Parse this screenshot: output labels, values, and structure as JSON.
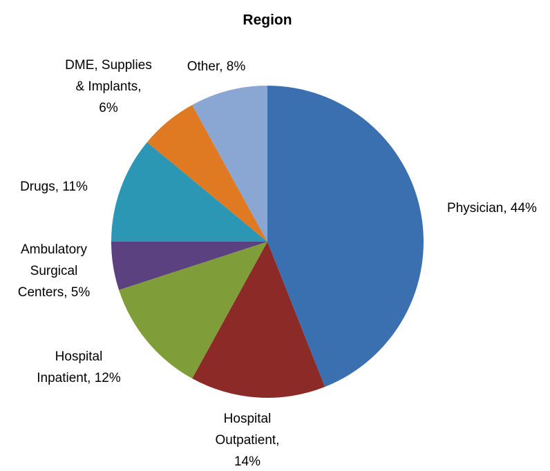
{
  "chart_data": {
    "type": "pie",
    "title": "Region",
    "values": [
      44,
      14,
      12,
      5,
      11,
      6,
      8
    ],
    "value_labels": [
      [
        "Physician, 44%"
      ],
      [
        "Hospital",
        "Outpatient,",
        "14%"
      ],
      [
        "Hospital",
        "Inpatient, 12%"
      ],
      [
        "Ambulatory",
        "Surgical",
        "Centers, 5%"
      ],
      [
        "Drugs, 11%"
      ],
      [
        "DME, Supplies",
        "& Implants,",
        "6%"
      ],
      [
        "Other, 8%"
      ]
    ],
    "colors": [
      "#3a6fb0",
      "#8b2a26",
      "#7f9e3a",
      "#5b4180",
      "#2b97b5",
      "#e07a22",
      "#8aa6d3"
    ]
  }
}
